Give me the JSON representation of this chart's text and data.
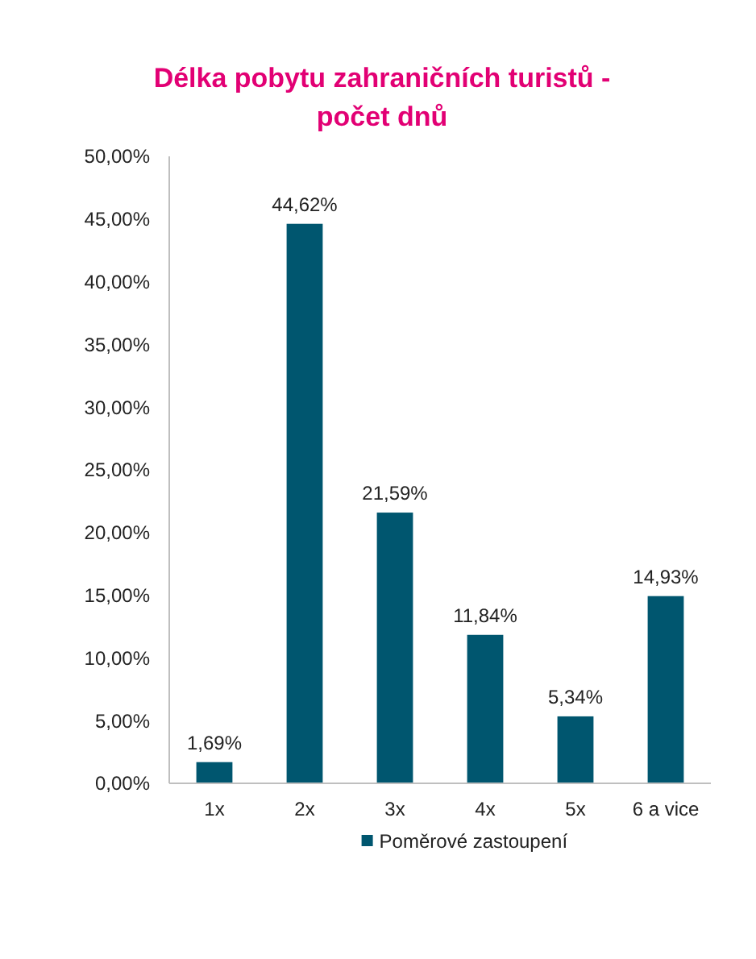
{
  "chart_data": {
    "type": "bar",
    "title": "Délka pobytu zahraničních turistů - počet dnů",
    "categories": [
      "1x",
      "2x",
      "3x",
      "4x",
      "5x",
      "6 a vice"
    ],
    "series": [
      {
        "name": "Poměrové zastoupení",
        "color": "#00566f",
        "values": [
          1.69,
          44.62,
          21.59,
          11.84,
          5.34,
          14.93
        ],
        "value_labels": [
          "1,69%",
          "44,62%",
          "21,59%",
          "11,84%",
          "5,34%",
          "14,93%"
        ]
      }
    ],
    "ylim": [
      0,
      50
    ],
    "yticks": [
      {
        "value": 0,
        "label": "0,00%"
      },
      {
        "value": 5,
        "label": "5,00%"
      },
      {
        "value": 10,
        "label": "10,00%"
      },
      {
        "value": 15,
        "label": "15,00%"
      },
      {
        "value": 20,
        "label": "20,00%"
      },
      {
        "value": 25,
        "label": "25,00%"
      },
      {
        "value": 30,
        "label": "30,00%"
      },
      {
        "value": 35,
        "label": "35,00%"
      },
      {
        "value": 40,
        "label": "40,00%"
      },
      {
        "value": 45,
        "label": "45,00%"
      },
      {
        "value": 50,
        "label": "50,00%"
      }
    ],
    "grid": false,
    "legend": "bottom"
  }
}
